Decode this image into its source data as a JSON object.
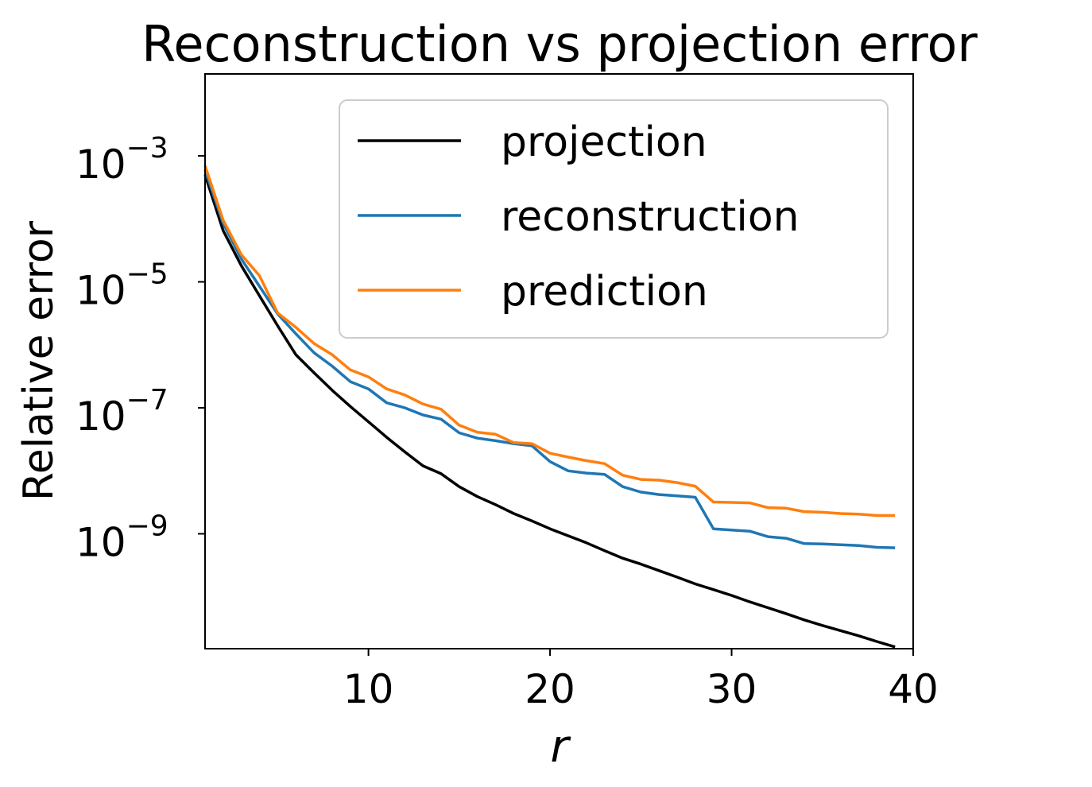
{
  "chart_data": {
    "type": "line",
    "title": "Reconstruction vs projection error",
    "xlabel": "r",
    "ylabel": "Relative error",
    "xlim": [
      1,
      40
    ],
    "ylim": [
      1.5e-11,
      0.02
    ],
    "yscale": "log",
    "grid": false,
    "legend_position": "top-right",
    "x_ticks": [
      10,
      20,
      30,
      40
    ],
    "x_tick_labels": [
      "10",
      "20",
      "30",
      "40"
    ],
    "y_ticks": [
      {
        "value": 0.001,
        "base": "10",
        "exp": "−3"
      },
      {
        "value": 1e-05,
        "base": "10",
        "exp": "−5"
      },
      {
        "value": 1e-07,
        "base": "10",
        "exp": "−7"
      },
      {
        "value": 1e-09,
        "base": "10",
        "exp": "−9"
      }
    ],
    "x": [
      1,
      2,
      3,
      4,
      5,
      6,
      7,
      8,
      9,
      10,
      11,
      12,
      13,
      14,
      15,
      16,
      17,
      18,
      19,
      20,
      21,
      22,
      23,
      24,
      25,
      26,
      27,
      28,
      29,
      30,
      31,
      32,
      33,
      34,
      35,
      36,
      37,
      38,
      39
    ],
    "series": [
      {
        "name": "projection",
        "color": "#000000",
        "values": [
          0.0005,
          6.5e-05,
          1.8e-05,
          6e-06,
          2e-06,
          7e-07,
          3.6e-07,
          1.9e-07,
          1.05e-07,
          6e-08,
          3.4e-08,
          2e-08,
          1.2e-08,
          9e-09,
          5.6e-09,
          3.9e-09,
          2.9e-09,
          2.1e-09,
          1.6e-09,
          1.2e-09,
          9.3e-10,
          7.2e-10,
          5.4e-10,
          4.1e-10,
          3.3e-10,
          2.6e-10,
          2.05e-10,
          1.6e-10,
          1.3e-10,
          1.05e-10,
          8.3e-11,
          6.7e-11,
          5.4e-11,
          4.3e-11,
          3.5e-11,
          2.9e-11,
          2.4e-11,
          1.95e-11,
          1.6e-11
        ]
      },
      {
        "name": "reconstruction",
        "color": "#1f77b4",
        "values": [
          0.0006,
          8.5e-05,
          2.3e-05,
          8.5e-06,
          3.1e-06,
          1.5e-06,
          7.5e-07,
          4.6e-07,
          2.6e-07,
          2e-07,
          1.2e-07,
          1e-07,
          7.7e-08,
          6.6e-08,
          4e-08,
          3.3e-08,
          3e-08,
          2.7e-08,
          2.5e-08,
          1.4e-08,
          1e-08,
          9.2e-09,
          8.8e-09,
          5.6e-09,
          4.6e-09,
          4.2e-09,
          4e-09,
          3.8e-09,
          1.2e-09,
          1.15e-09,
          1.1e-09,
          9e-10,
          8.5e-10,
          7e-10,
          6.9e-10,
          6.7e-10,
          6.5e-10,
          6.1e-10,
          6e-10
        ]
      },
      {
        "name": "prediction",
        "color": "#ff7f0e",
        "values": [
          0.0007,
          9.5e-05,
          2.7e-05,
          1.25e-05,
          3.2e-06,
          1.9e-06,
          1.05e-06,
          7e-07,
          4e-07,
          3.1e-07,
          2e-07,
          1.6e-07,
          1.15e-07,
          9.5e-08,
          5.3e-08,
          4.1e-08,
          3.8e-08,
          2.8e-08,
          2.7e-08,
          1.9e-08,
          1.65e-08,
          1.45e-08,
          1.3e-08,
          8.5e-09,
          7.3e-09,
          7.1e-09,
          6.5e-09,
          5.7e-09,
          3.2e-09,
          3.15e-09,
          3.1e-09,
          2.6e-09,
          2.55e-09,
          2.25e-09,
          2.2e-09,
          2.1e-09,
          2.05e-09,
          1.95e-09,
          1.95e-09
        ]
      }
    ]
  }
}
